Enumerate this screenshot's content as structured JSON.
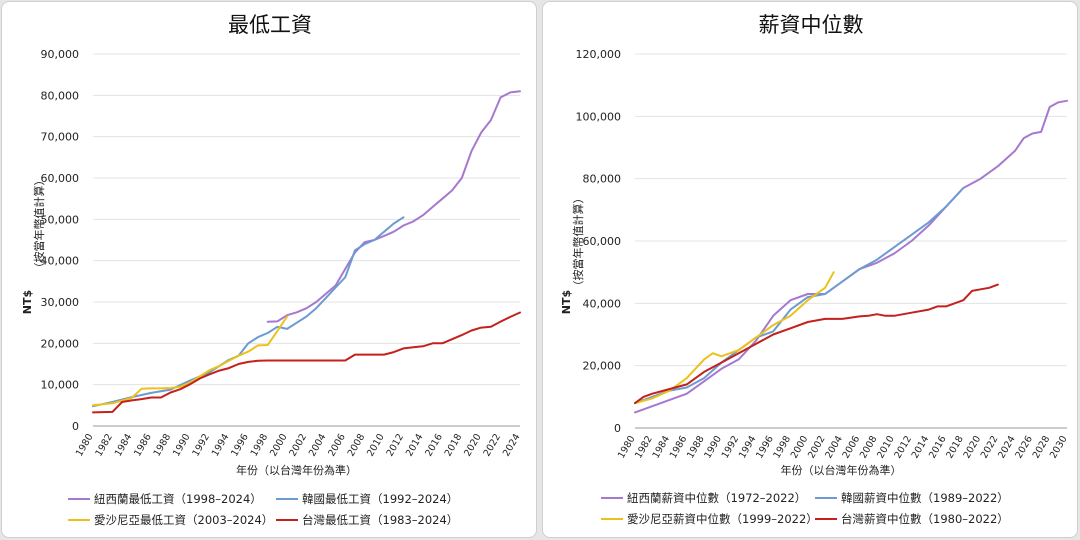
{
  "chart_data": [
    {
      "type": "line",
      "title": "最低工資",
      "xlabel": "年份（以台灣年份為準）",
      "ylabel": "NT$",
      "ylabel_note": "（按當年幣值計算）",
      "xlim": [
        1980,
        2024
      ],
      "ylim": [
        0,
        90000
      ],
      "xticks": [
        "1980",
        "1982",
        "1984",
        "1986",
        "1988",
        "1990",
        "1992",
        "1994",
        "1996",
        "1998",
        "2000",
        "2002",
        "2004",
        "2006",
        "2008",
        "2010",
        "2012",
        "2014",
        "2016",
        "2018",
        "2020",
        "2022",
        "2024"
      ],
      "yticks": [
        "0",
        "10,000",
        "20,000",
        "30,000",
        "40,000",
        "50,000",
        "60,000",
        "70,000",
        "80,000",
        "90,000"
      ],
      "grid": "horizontal",
      "legend_position": "bottom",
      "series": [
        {
          "name": "紐西蘭最低工資（1998–2024）",
          "color": "#a678d0",
          "x": [
            1998,
            1999,
            2000,
            2001,
            2002,
            2003,
            2004,
            2005,
            2006,
            2007,
            2008,
            2009,
            2010,
            2011,
            2012,
            2013,
            2014,
            2015,
            2016,
            2017,
            2018,
            2019,
            2020,
            2021,
            2022,
            2023,
            2024
          ],
          "y": [
            25200,
            25300,
            26800,
            27500,
            28500,
            30000,
            32000,
            34000,
            38000,
            42000,
            44500,
            45000,
            46000,
            47000,
            48500,
            49500,
            51000,
            53000,
            55000,
            57000,
            60000,
            66500,
            71000,
            74000,
            79500,
            80700,
            81000
          ]
        },
        {
          "name": "韓國最低工資（1992–2024）",
          "color": "#6b9bd2",
          "x": [
            1980,
            1982,
            1984,
            1986,
            1988,
            1990,
            1992,
            1994,
            1995,
            1996,
            1997,
            1998,
            1999,
            2000,
            2001,
            2002,
            2003,
            2004,
            2005,
            2006,
            2007,
            2008,
            2009,
            2010,
            2011,
            2012
          ],
          "y": [
            4800,
            5800,
            7000,
            8000,
            8800,
            11000,
            13000,
            16000,
            17000,
            20000,
            21500,
            22500,
            24000,
            23500,
            25000,
            26500,
            28500,
            31000,
            33500,
            36000,
            42500,
            44000,
            45000,
            47000,
            49000,
            50500
          ]
        },
        {
          "name": "愛沙尼亞最低工資（2003–2024）",
          "color": "#ebc21b",
          "x": [
            1980,
            1982,
            1984,
            1985,
            1986,
            1987,
            1988,
            1989,
            1990,
            1991,
            1992,
            1993,
            1994,
            1995,
            1996,
            1997,
            1998,
            1999,
            2000
          ],
          "y": [
            5000,
            5500,
            6800,
            9000,
            9100,
            9100,
            9200,
            9500,
            10500,
            12000,
            13500,
            14500,
            15800,
            17000,
            18000,
            19500,
            19600,
            23000,
            26500
          ]
        },
        {
          "name": "台灣最低工資（1983–2024）",
          "color": "#c4201c",
          "x": [
            1980,
            1982,
            1983,
            1984,
            1985,
            1986,
            1987,
            1988,
            1989,
            1990,
            1991,
            1992,
            1993,
            1994,
            1995,
            1996,
            1997,
            1998,
            2000,
            2002,
            2004,
            2006,
            2007,
            2008,
            2010,
            2011,
            2012,
            2013,
            2014,
            2015,
            2016,
            2017,
            2018,
            2019,
            2020,
            2021,
            2022,
            2023,
            2024
          ],
          "y": [
            3300,
            3400,
            5800,
            6200,
            6500,
            6900,
            6900,
            8100,
            8900,
            10100,
            11500,
            12500,
            13400,
            14000,
            15000,
            15500,
            15800,
            15840,
            15840,
            15840,
            15840,
            15840,
            17280,
            17280,
            17280,
            17880,
            18780,
            19047,
            19273,
            20008,
            20008,
            21009,
            22000,
            23100,
            23800,
            24000,
            25250,
            26400,
            27470
          ]
        }
      ]
    },
    {
      "type": "line",
      "title": "薪資中位數",
      "xlabel": "年份（以台灣年份為準）",
      "ylabel": "NT$",
      "ylabel_note": "（按當年幣值計算）",
      "xlim": [
        1980,
        2030
      ],
      "ylim": [
        0,
        120000
      ],
      "xticks": [
        "1980",
        "1982",
        "1984",
        "1986",
        "1988",
        "1990",
        "1992",
        "1994",
        "1996",
        "1998",
        "2000",
        "2002",
        "2004",
        "2006",
        "2008",
        "2010",
        "2012",
        "2014",
        "2016",
        "2018",
        "2020",
        "2022",
        "2024",
        "2026",
        "2028",
        "2030"
      ],
      "yticks": [
        "0",
        "20,000",
        "40,000",
        "60,000",
        "80,000",
        "100,000",
        "120,000"
      ],
      "grid": "horizontal",
      "legend_position": "bottom",
      "series": [
        {
          "name": "紐西蘭薪資中位數（1972–2022）",
          "color": "#a678d0",
          "x": [
            1980,
            1982,
            1984,
            1986,
            1988,
            1990,
            1992,
            1994,
            1996,
            1998,
            2000,
            2002,
            2004,
            2006,
            2008,
            2010,
            2012,
            2014,
            2016,
            2018,
            2020,
            2022,
            2024,
            2025,
            2026,
            2027,
            2028,
            2029,
            2030
          ],
          "y": [
            5000,
            7000,
            9000,
            11000,
            15000,
            19000,
            22000,
            28000,
            36000,
            41000,
            43000,
            43000,
            47000,
            51000,
            53000,
            56000,
            60000,
            65000,
            71000,
            77000,
            80000,
            84000,
            89000,
            93000,
            94500,
            95000,
            103000,
            104500,
            105000
          ]
        },
        {
          "name": "韓國薪資中位數（1989–2022）",
          "color": "#6b9bd2",
          "x": [
            1980,
            1982,
            1984,
            1986,
            1988,
            1990,
            1992,
            1994,
            1996,
            1998,
            2000,
            2002,
            2004,
            2006,
            2008,
            2010,
            2012,
            2014,
            2016,
            2018
          ],
          "y": [
            8000,
            10000,
            12000,
            13000,
            16000,
            21000,
            25000,
            29000,
            31000,
            38000,
            42000,
            43000,
            47000,
            51000,
            54000,
            58000,
            62000,
            66000,
            71000,
            77000
          ]
        },
        {
          "name": "愛沙尼亞薪資中位數（1999–2022）",
          "color": "#ebc21b",
          "x": [
            1980,
            1982,
            1984,
            1986,
            1988,
            1989,
            1990,
            1992,
            1994,
            1996,
            1998,
            2000,
            2002,
            2003
          ],
          "y": [
            8000,
            9500,
            12000,
            16000,
            22000,
            24000,
            23000,
            25000,
            29000,
            33000,
            36000,
            41000,
            45000,
            50000
          ]
        },
        {
          "name": "台灣薪資中位數（1980–2022）",
          "color": "#c4201c",
          "x": [
            1980,
            1981,
            1982,
            1984,
            1986,
            1988,
            1990,
            1992,
            1994,
            1996,
            1998,
            2000,
            2002,
            2004,
            2006,
            2007,
            2008,
            2009,
            2010,
            2012,
            2014,
            2015,
            2016,
            2017,
            2018,
            2019,
            2020,
            2021,
            2022
          ],
          "y": [
            8000,
            10000,
            11000,
            12500,
            14000,
            18000,
            21000,
            24000,
            27000,
            30000,
            32000,
            34000,
            35000,
            35000,
            35800,
            36000,
            36500,
            36000,
            36000,
            37000,
            38000,
            39000,
            39000,
            40000,
            41000,
            44000,
            44500,
            45000,
            46000
          ]
        }
      ]
    }
  ]
}
